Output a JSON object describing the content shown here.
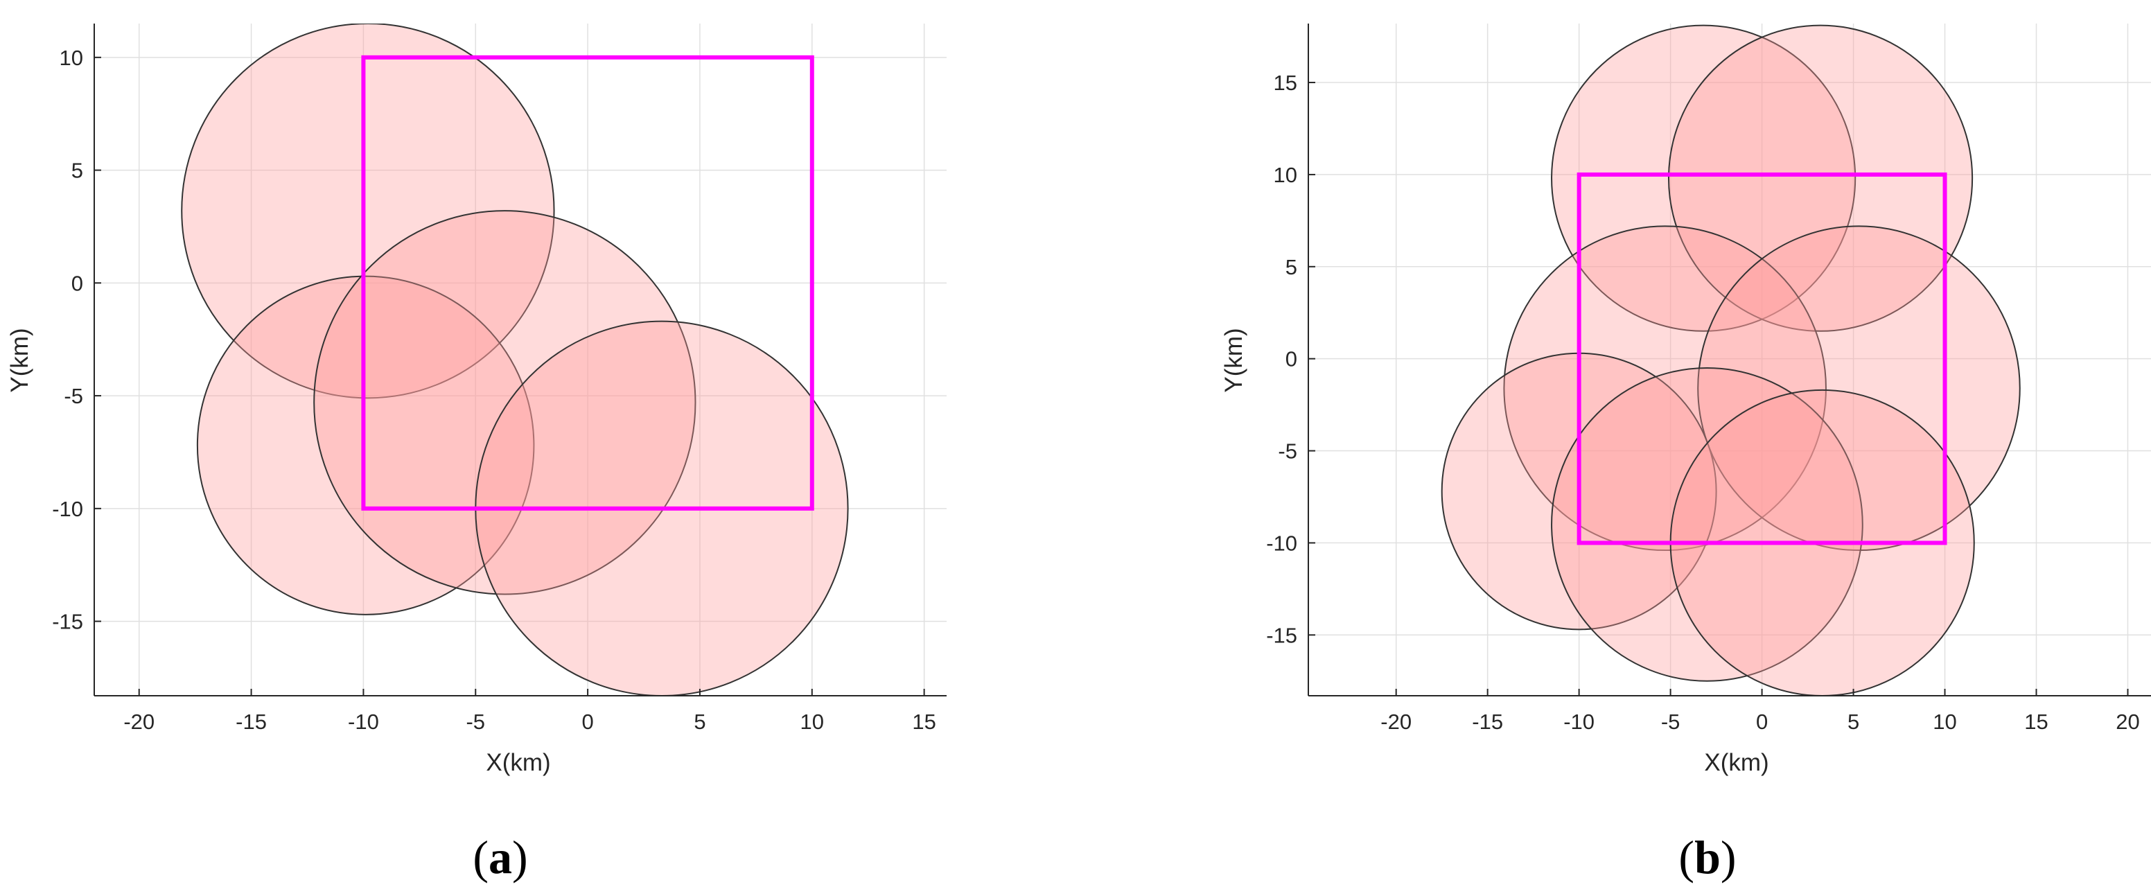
{
  "colors": {
    "circle_fill": "#ff9a9a",
    "circle_stroke": "#333333",
    "square": "#ff00ff",
    "grid": "#e0e0e0",
    "axis": "#262626"
  },
  "chart_data": [
    {
      "type": "scatter",
      "panel_label": "a",
      "xlabel": "X(km)",
      "ylabel": "Y(km)",
      "xlim": [
        -22,
        16
      ],
      "ylim": [
        -18.3,
        11.5
      ],
      "xticks": [
        -20,
        -15,
        -10,
        -5,
        0,
        5,
        10,
        15
      ],
      "yticks": [
        -15,
        -10,
        -5,
        0,
        5,
        10
      ],
      "grid": true,
      "square": {
        "x0": -10,
        "y0": -10,
        "x1": 10,
        "y1": 10
      },
      "circles": [
        {
          "cx": -9.8,
          "cy": 3.2,
          "r": 8.3
        },
        {
          "cx": -9.9,
          "cy": -7.2,
          "r": 7.5
        },
        {
          "cx": -3.7,
          "cy": -5.3,
          "r": 8.5
        },
        {
          "cx": 3.3,
          "cy": -10.0,
          "r": 8.3
        }
      ]
    },
    {
      "type": "scatter",
      "panel_label": "b",
      "xlabel": "X(km)",
      "ylabel": "Y(km)",
      "xlim": [
        -24.8,
        21.8
      ],
      "ylim": [
        -18.3,
        18.2
      ],
      "xticks": [
        -20,
        -15,
        -10,
        -5,
        0,
        5,
        10,
        15,
        20
      ],
      "yticks": [
        -15,
        -10,
        -5,
        0,
        5,
        10,
        15
      ],
      "grid": true,
      "square": {
        "x0": -10,
        "y0": -10,
        "x1": 10,
        "y1": 10
      },
      "circles": [
        {
          "cx": -3.2,
          "cy": 9.8,
          "r": 8.3
        },
        {
          "cx": 3.2,
          "cy": 9.8,
          "r": 8.3
        },
        {
          "cx": -5.3,
          "cy": -1.6,
          "r": 8.8
        },
        {
          "cx": 5.3,
          "cy": -1.6,
          "r": 8.8
        },
        {
          "cx": -10.0,
          "cy": -7.2,
          "r": 7.5
        },
        {
          "cx": -3.0,
          "cy": -9.0,
          "r": 8.5
        },
        {
          "cx": 3.3,
          "cy": -10.0,
          "r": 8.3
        }
      ]
    }
  ]
}
